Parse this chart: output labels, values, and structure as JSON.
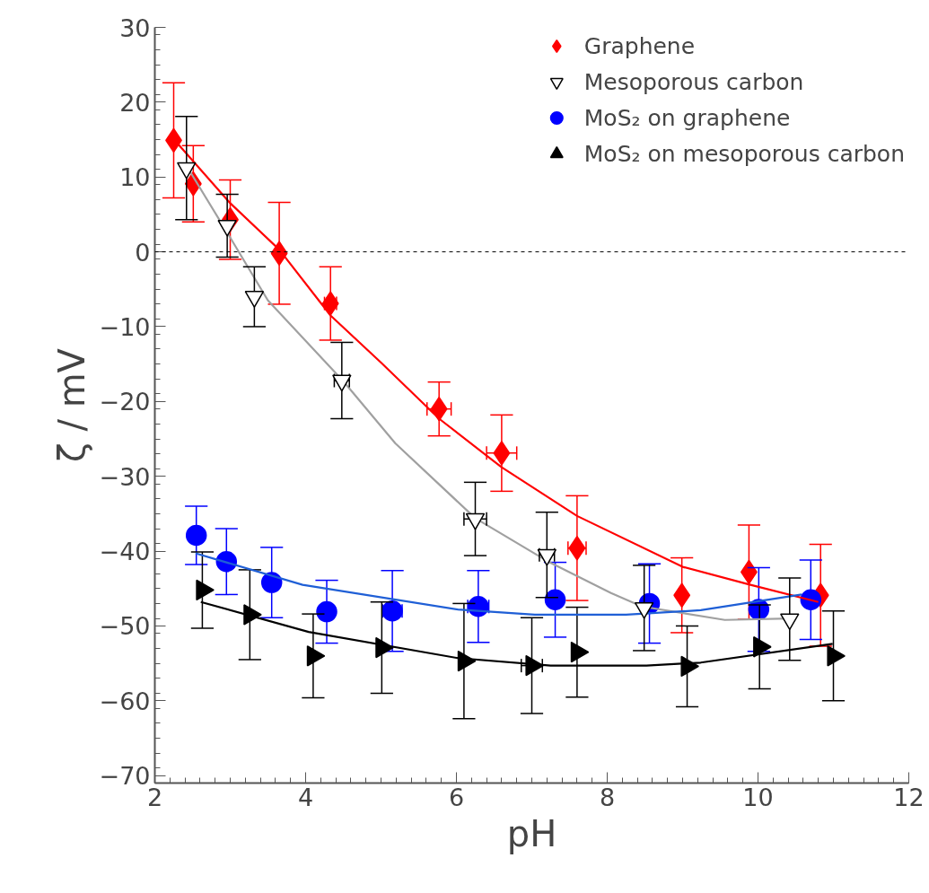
{
  "chart_data": {
    "type": "scatter",
    "xlabel": "pH",
    "ylabel": "ζ / mV",
    "xlim": [
      2,
      12
    ],
    "ylim": [
      -71,
      30
    ],
    "xticks": [
      2,
      4,
      6,
      8,
      10,
      12
    ],
    "yticks": [
      -70,
      -60,
      -50,
      -40,
      -30,
      -20,
      -10,
      0,
      10,
      20,
      30
    ],
    "grid": false,
    "legend": "top right",
    "ref_lines": [
      {
        "axis": "y",
        "value": 0,
        "color": "#000000",
        "line_style": "dashed"
      }
    ],
    "series": [
      {
        "name": "Graphene",
        "marker": "diamond",
        "color": "#ff0000",
        "x": [
          2.25,
          2.51,
          3.0,
          3.65,
          4.33,
          5.77,
          6.6,
          7.6,
          8.99,
          9.88,
          10.83
        ],
        "values": [
          14.9,
          9.1,
          4.3,
          -0.2,
          -6.9,
          -21.0,
          -26.9,
          -39.6,
          -45.9,
          -42.8,
          -45.9
        ],
        "errors": [
          7.7,
          5.1,
          5.3,
          6.8,
          4.9,
          3.6,
          5.1,
          7,
          5,
          6.3,
          6.8
        ],
        "xerrors": [
          null,
          null,
          null,
          null,
          0.08,
          0.16,
          0.2,
          0.12,
          null,
          null,
          null
        ]
      },
      {
        "name": "Mesoporous carbon",
        "marker": "triangle_down",
        "color": "#000000",
        "x": [
          2.42,
          2.96,
          3.32,
          4.48,
          6.25,
          7.2,
          8.49,
          10.42
        ],
        "values": [
          11.2,
          3.5,
          -6.0,
          -17.2,
          -35.7,
          -40.5,
          -47.6,
          -49.1
        ],
        "errors": [
          6.9,
          4.2,
          4,
          5.1,
          4.9,
          5.7,
          5.7,
          5.5
        ],
        "xerrors": [
          null,
          null,
          null,
          0.1,
          0.15,
          0.1,
          null,
          null
        ]
      },
      {
        "name": "MoS₂ on graphene",
        "marker": "circle",
        "color": "#0000ff",
        "x": [
          2.55,
          2.95,
          3.55,
          4.28,
          5.15,
          6.29,
          7.31,
          8.56,
          10.01,
          10.7
        ],
        "values": [
          -37.9,
          -41.4,
          -44.2,
          -48.1,
          -48.0,
          -47.4,
          -46.5,
          -47.0,
          -47.8,
          -46.5
        ],
        "errors": [
          3.9,
          4.4,
          4.7,
          4.2,
          5.4,
          4.8,
          5,
          5.3,
          5.6,
          5.3
        ],
        "xerrors": [
          null,
          null,
          null,
          null,
          0.13,
          0.14,
          null,
          null,
          null,
          null
        ]
      },
      {
        "name": "MoS₂ on mesoporous carbon",
        "marker": "triangle_right",
        "color": "#000000",
        "x": [
          2.63,
          3.26,
          4.1,
          5.01,
          6.1,
          7.0,
          7.6,
          9.06,
          10.02,
          11.0
        ],
        "values": [
          -45.2,
          -48.5,
          -54.0,
          -52.9,
          -54.7,
          -55.3,
          -53.5,
          -55.4,
          -52.8,
          -54.0
        ],
        "errors": [
          5.1,
          6,
          5.6,
          6.1,
          7.7,
          6.4,
          6,
          5.4,
          5.6,
          6
        ],
        "xerrors": [
          null,
          null,
          null,
          null,
          null,
          0.14,
          null,
          null,
          null,
          null
        ]
      },
      {
        "type": "line",
        "color": "#ff0000",
        "x": [
          2.3,
          3,
          3.65,
          4.33,
          5,
          5.77,
          6.6,
          7.6,
          9,
          9.9,
          10.8
        ],
        "values": [
          14.5,
          6.5,
          0.3,
          -8.5,
          -14.8,
          -22.3,
          -28.8,
          -35.3,
          -42.1,
          -44.5,
          -46.8
        ]
      },
      {
        "type": "line",
        "color": "#a0a0a0",
        "x": [
          2.42,
          3,
          3.5,
          4.5,
          5.19,
          6.25,
          7.2,
          8.05,
          8.46,
          9.56,
          10.42
        ],
        "values": [
          11.5,
          1.9,
          -6.5,
          -17.3,
          -25.6,
          -35.6,
          -41.3,
          -45.6,
          -47.4,
          -49.2,
          -49.0
        ]
      },
      {
        "type": "line",
        "color": "#1f5fd6",
        "x": [
          2.54,
          3.96,
          6.02,
          7.04,
          8.25,
          9.24,
          10.58
        ],
        "values": [
          -40.3,
          -44.5,
          -47.8,
          -48.5,
          -48.5,
          -47.9,
          -45.8
        ]
      },
      {
        "type": "line",
        "color": "#000000",
        "x": [
          2.61,
          4.04,
          6.02,
          7.25,
          8.52,
          9.24,
          10.99
        ],
        "values": [
          -46.8,
          -50.8,
          -54.3,
          -55.3,
          -55.3,
          -54.9,
          -52.4
        ]
      }
    ]
  }
}
